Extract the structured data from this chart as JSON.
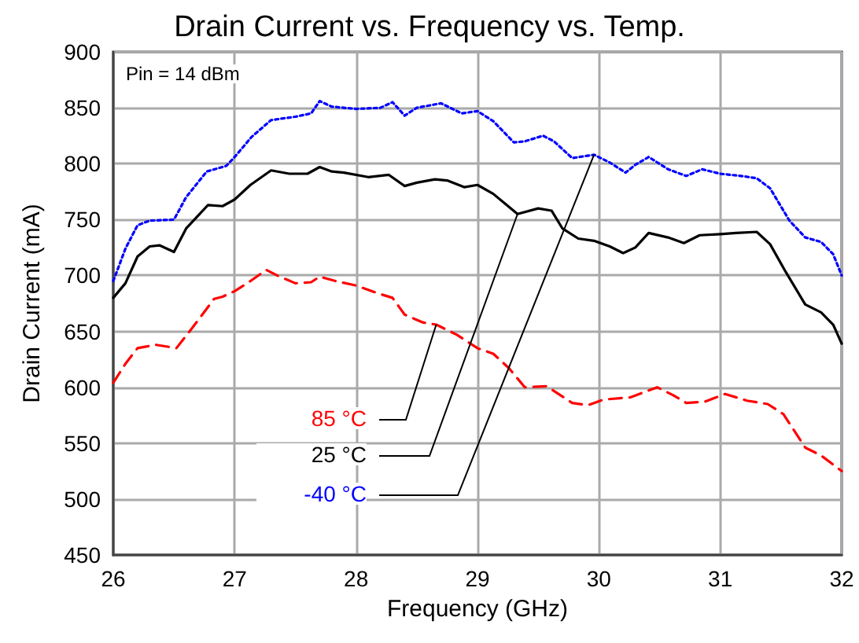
{
  "chart_data": {
    "type": "line",
    "title": "Drain Current vs. Frequency vs. Temp.",
    "xlabel": "Frequency (GHz)",
    "ylabel": "Drain Current (mA)",
    "annotations": [
      "Pin = 14 dBm"
    ],
    "xlim": [
      26,
      32
    ],
    "xticks": [
      26,
      27,
      28,
      29,
      30,
      31,
      32
    ],
    "ylim": [
      450,
      900
    ],
    "yticks": [
      450,
      500,
      550,
      600,
      650,
      700,
      750,
      800,
      850,
      900
    ],
    "grid": true,
    "legend": false,
    "marker": "none",
    "series": [
      {
        "name": "85 °C",
        "color": "#ff0000",
        "line_style": "dashed",
        "x": [
          26.0,
          26.1,
          26.2,
          26.35,
          26.52,
          26.65,
          26.83,
          26.9,
          27.0,
          27.13,
          27.26,
          27.35,
          27.5,
          27.63,
          27.7,
          27.83,
          28.0,
          28.18,
          28.3,
          28.4,
          28.55,
          28.66,
          28.83,
          29.0,
          29.13,
          29.26,
          29.39,
          29.57,
          29.78,
          29.91,
          30.04,
          30.26,
          30.48,
          30.61,
          30.72,
          30.87,
          31.04,
          31.22,
          31.39,
          31.52,
          31.7,
          31.83,
          32.0
        ],
        "values": [
          604,
          621,
          635,
          638,
          635,
          653,
          679,
          681,
          686,
          695,
          705,
          700,
          693,
          694,
          699,
          695,
          691,
          684,
          680,
          665,
          658,
          656,
          647,
          635,
          630,
          617,
          600,
          601,
          586,
          584,
          589,
          591,
          600,
          593,
          586,
          587,
          594,
          588,
          585,
          576,
          546,
          539,
          525
        ]
      },
      {
        "name": "25 °C",
        "color": "#000000",
        "line_style": "solid",
        "x": [
          26.0,
          26.1,
          26.2,
          26.3,
          26.38,
          26.5,
          26.6,
          26.78,
          26.9,
          27.0,
          27.13,
          27.3,
          27.45,
          27.6,
          27.7,
          27.8,
          27.9,
          28.1,
          28.27,
          28.4,
          28.5,
          28.65,
          28.75,
          28.89,
          29.0,
          29.13,
          29.33,
          29.5,
          29.61,
          29.7,
          29.83,
          29.96,
          30.09,
          30.2,
          30.3,
          30.41,
          30.57,
          30.7,
          30.83,
          31.0,
          31.13,
          31.3,
          31.41,
          31.54,
          31.7,
          31.83,
          31.93,
          32.0
        ],
        "values": [
          680,
          693,
          717,
          726,
          727,
          721,
          742,
          763,
          762,
          768,
          781,
          794,
          791,
          791,
          797,
          793,
          792,
          788,
          790,
          780,
          783,
          786,
          785,
          779,
          781,
          773,
          755,
          760,
          758,
          742,
          733,
          731,
          726,
          720,
          725,
          738,
          734,
          729,
          736,
          737,
          738,
          739,
          728,
          703,
          674,
          667,
          656,
          639
        ]
      },
      {
        "name": "-40 °C",
        "color": "#0000ff",
        "line_style": "dotted",
        "x": [
          26.0,
          26.1,
          26.2,
          26.3,
          26.5,
          26.6,
          26.77,
          26.93,
          27.0,
          27.14,
          27.3,
          27.5,
          27.63,
          27.7,
          27.8,
          28.0,
          28.2,
          28.3,
          28.4,
          28.5,
          28.7,
          28.87,
          29.0,
          29.13,
          29.3,
          29.39,
          29.54,
          29.63,
          29.78,
          29.96,
          30.09,
          30.22,
          30.3,
          30.41,
          30.57,
          30.72,
          30.85,
          31.0,
          31.17,
          31.3,
          31.41,
          31.57,
          31.7,
          31.83,
          31.93,
          32.0
        ],
        "values": [
          695,
          724,
          745,
          749,
          750,
          770,
          793,
          798,
          806,
          824,
          839,
          842,
          845,
          856,
          851,
          849,
          850,
          855,
          843,
          850,
          854,
          845,
          847,
          838,
          819,
          820,
          825,
          820,
          805,
          808,
          801,
          792,
          799,
          806,
          795,
          789,
          795,
          791,
          789,
          787,
          778,
          749,
          734,
          730,
          719,
          700
        ]
      }
    ]
  }
}
